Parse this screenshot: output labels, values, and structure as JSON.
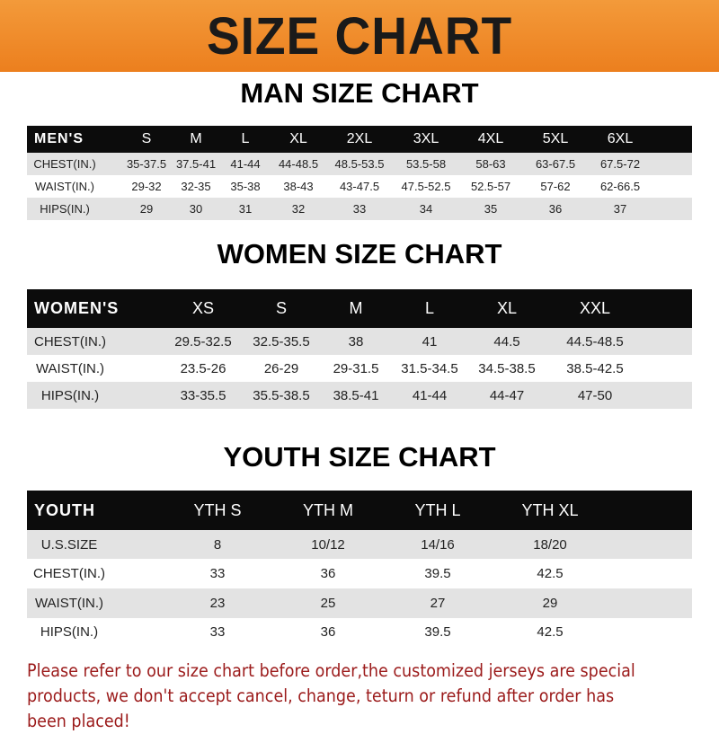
{
  "banner_title": "SIZE CHART",
  "colors": {
    "banner": "#ee8526",
    "header_row": "#0c0c0c",
    "stripe": "#e3e3e3",
    "note": "#9b1a1a"
  },
  "men": {
    "title": "MAN SIZE CHART",
    "header": [
      "MEN'S",
      "S",
      "M",
      "L",
      "XL",
      "2XL",
      "3XL",
      "4XL",
      "5XL",
      "6XL"
    ],
    "rows": [
      [
        "CHEST(IN.)",
        "35-37.5",
        "37.5-41",
        "41-44",
        "44-48.5",
        "48.5-53.5",
        "53.5-58",
        "58-63",
        "63-67.5",
        "67.5-72"
      ],
      [
        "WAIST(IN.)",
        "29-32",
        "32-35",
        "35-38",
        "38-43",
        "43-47.5",
        "47.5-52.5",
        "52.5-57",
        "57-62",
        "62-66.5"
      ],
      [
        "HIPS(IN.)",
        "29",
        "30",
        "31",
        "32",
        "33",
        "34",
        "35",
        "36",
        "37"
      ]
    ]
  },
  "women": {
    "title": "WOMEN SIZE CHART",
    "header": [
      "WOMEN'S",
      "XS",
      "S",
      "M",
      "L",
      "XL",
      "XXL"
    ],
    "rows": [
      [
        "CHEST(IN.)",
        "29.5-32.5",
        "32.5-35.5",
        "38",
        "41",
        "44.5",
        "44.5-48.5"
      ],
      [
        "WAIST(IN.)",
        "23.5-26",
        "26-29",
        "29-31.5",
        "31.5-34.5",
        "34.5-38.5",
        "38.5-42.5"
      ],
      [
        "HIPS(IN.)",
        "33-35.5",
        "35.5-38.5",
        "38.5-41",
        "41-44",
        "44-47",
        "47-50"
      ]
    ]
  },
  "youth": {
    "title": "YOUTH SIZE CHART",
    "header": [
      "YOUTH",
      "YTH S",
      "YTH M",
      "YTH L",
      "YTH XL"
    ],
    "rows": [
      [
        "U.S.SIZE",
        "8",
        "10/12",
        "14/16",
        "18/20"
      ],
      [
        "CHEST(IN.)",
        "33",
        "36",
        "39.5",
        "42.5"
      ],
      [
        "WAIST(IN.)",
        "23",
        "25",
        "27",
        "29"
      ],
      [
        "HIPS(IN.)",
        "33",
        "36",
        "39.5",
        "42.5"
      ]
    ]
  },
  "note": "Please refer to our size chart before order,the customized jerseys are special products, we don't accept cancel, change, teturn or refund after order has been placed!"
}
